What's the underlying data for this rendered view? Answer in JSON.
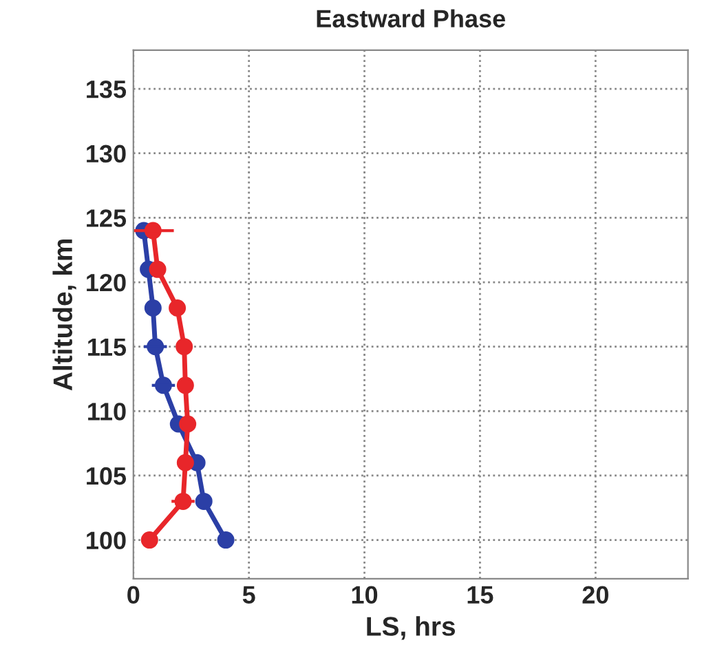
{
  "chart_data": {
    "type": "line",
    "title": "Eastward Phase",
    "xlabel": "LS, hrs",
    "ylabel": "Altitude, km",
    "orientation": "horizontal",
    "x": [
      124,
      121,
      118,
      115,
      112,
      109,
      106,
      103,
      100
    ],
    "series": [
      {
        "color": "#2b3fa6",
        "values": [
          0.45,
          0.65,
          0.85,
          0.95,
          1.3,
          1.95,
          2.75,
          3.05,
          4.0
        ],
        "errors": [
          null,
          null,
          null,
          0.5,
          0.5,
          null,
          null,
          null,
          null
        ]
      },
      {
        "color": "#e8262a",
        "values": [
          0.85,
          1.05,
          1.9,
          2.2,
          2.25,
          2.35,
          2.25,
          2.15,
          0.7
        ],
        "errors": [
          0.9,
          null,
          null,
          null,
          null,
          null,
          null,
          0.5,
          null
        ]
      }
    ],
    "xlim": [
      0,
      24
    ],
    "ylim": [
      97,
      138
    ],
    "xticks": [
      0,
      5,
      10,
      15,
      20
    ],
    "yticks": [
      100,
      105,
      110,
      115,
      120,
      125,
      130,
      135
    ],
    "grid": true,
    "marker": "circle",
    "line_style": "solid"
  }
}
